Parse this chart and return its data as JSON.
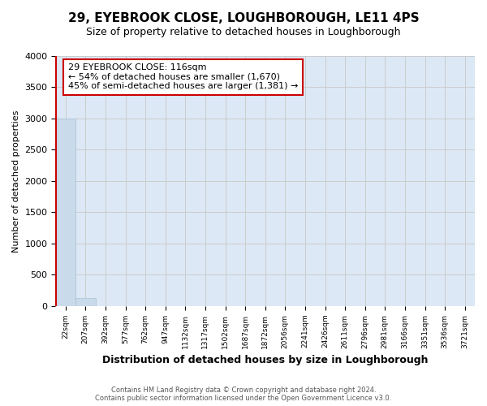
{
  "title_line1": "29, EYEBROOK CLOSE, LOUGHBOROUGH, LE11 4PS",
  "title_line2": "Size of property relative to detached houses in Loughborough",
  "xlabel": "Distribution of detached houses by size in Loughborough",
  "ylabel": "Number of detached properties",
  "bin_labels": [
    "22sqm",
    "207sqm",
    "392sqm",
    "577sqm",
    "762sqm",
    "947sqm",
    "1132sqm",
    "1317sqm",
    "1502sqm",
    "1687sqm",
    "1872sqm",
    "2056sqm",
    "2241sqm",
    "2426sqm",
    "2611sqm",
    "2796sqm",
    "2981sqm",
    "3166sqm",
    "3351sqm",
    "3536sqm",
    "3721sqm"
  ],
  "bar_heights": [
    3000,
    130,
    0,
    0,
    0,
    0,
    0,
    0,
    0,
    0,
    0,
    0,
    0,
    0,
    0,
    0,
    0,
    0,
    0,
    0,
    0
  ],
  "bar_color": "#c9daea",
  "bar_edge_color": "#a8c4d8",
  "vline_color": "#cc0000",
  "vline_x": 0.02,
  "annotation_title": "29 EYEBROOK CLOSE: 116sqm",
  "annotation_line2": "← 54% of detached houses are smaller (1,670)",
  "annotation_line3": "45% of semi-detached houses are larger (1,381) →",
  "annotation_box_color": "#ffffff",
  "annotation_box_edge": "#cc0000",
  "ylim": [
    0,
    4000
  ],
  "yticks": [
    0,
    500,
    1000,
    1500,
    2000,
    2500,
    3000,
    3500,
    4000
  ],
  "grid_color": "#cccccc",
  "background_color": "#dce8f5",
  "footer_line1": "Contains HM Land Registry data © Crown copyright and database right 2024.",
  "footer_line2": "Contains public sector information licensed under the Open Government Licence v3.0."
}
